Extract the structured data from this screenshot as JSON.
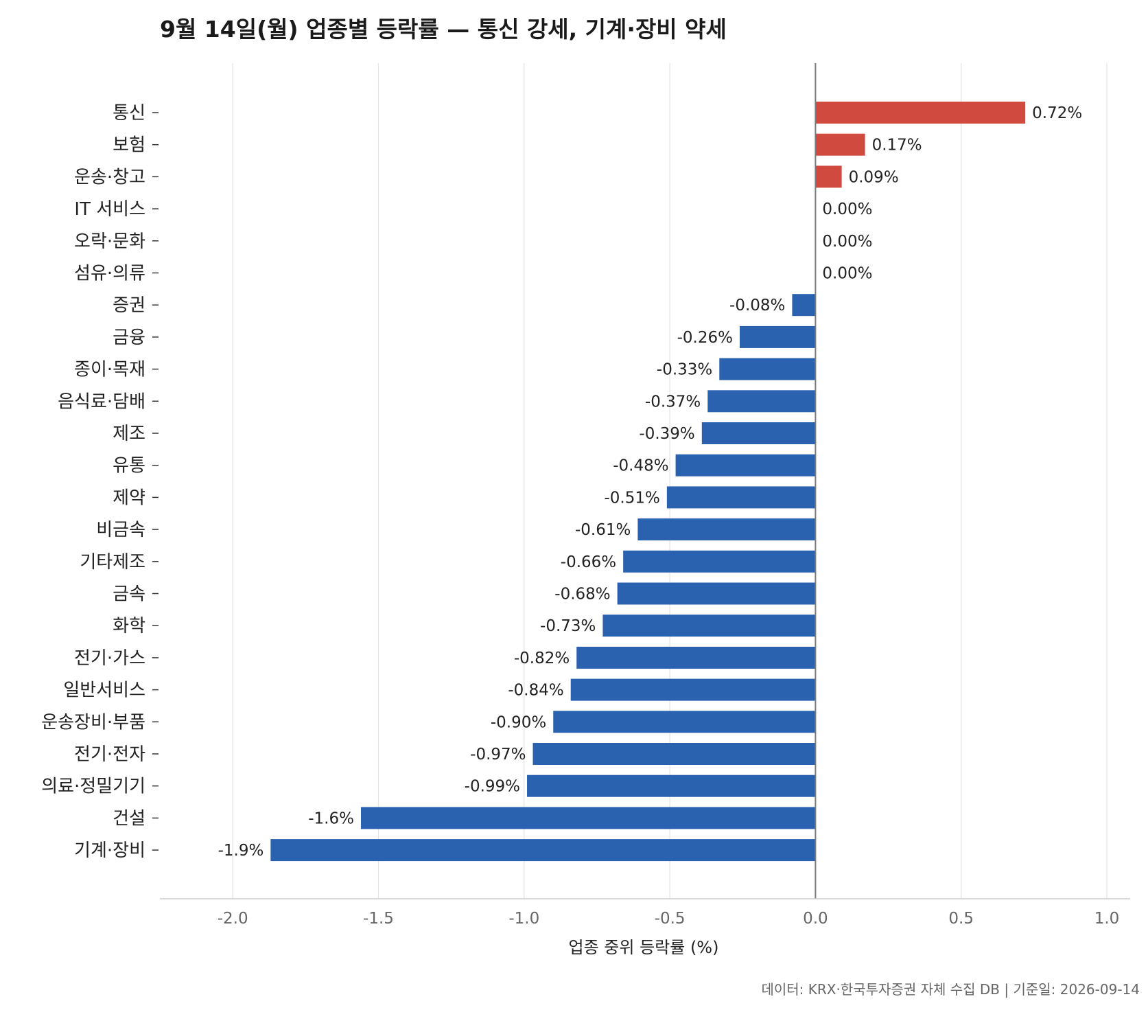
{
  "chart_data": {
    "type": "bar",
    "orientation": "horizontal",
    "title": "9월 14일(월) 업종별 등락률 — 통신 강세, 기계·장비 약세",
    "xlabel": "업종 중위 등락률 (%)",
    "ylabel": "",
    "xlim": [
      -2.25,
      1.08
    ],
    "xticks": [
      -2.0,
      -1.5,
      -1.0,
      -0.5,
      0.0,
      0.5,
      1.0
    ],
    "xtick_labels": [
      "-2.0",
      "-1.5",
      "-1.0",
      "-0.5",
      "0.0",
      "0.5",
      "1.0"
    ],
    "grid": "vertical",
    "colors": {
      "positive": "#d14a3f",
      "negative": "#2a62b0",
      "zero_line": "#7a7a7a",
      "grid": "#e3e3e3"
    },
    "categories": [
      "통신",
      "보험",
      "운송·창고",
      "IT 서비스",
      "오락·문화",
      "섬유·의류",
      "증권",
      "금융",
      "종이·목재",
      "음식료·담배",
      "제조",
      "유통",
      "제약",
      "비금속",
      "기타제조",
      "금속",
      "화학",
      "전기·가스",
      "일반서비스",
      "운송장비·부품",
      "전기·전자",
      "의료·정밀기기",
      "건설",
      "기계·장비"
    ],
    "values": [
      0.72,
      0.17,
      0.09,
      0.0,
      0.0,
      0.0,
      -0.08,
      -0.26,
      -0.33,
      -0.37,
      -0.39,
      -0.48,
      -0.51,
      -0.61,
      -0.66,
      -0.68,
      -0.73,
      -0.82,
      -0.84,
      -0.9,
      -0.97,
      -0.99,
      -1.56,
      -1.87
    ],
    "value_labels": [
      "0.72%",
      "0.17%",
      "0.09%",
      "0.00%",
      "0.00%",
      "0.00%",
      "-0.08%",
      "-0.26%",
      "-0.33%",
      "-0.37%",
      "-0.39%",
      "-0.48%",
      "-0.51%",
      "-0.61%",
      "-0.66%",
      "-0.68%",
      "-0.73%",
      "-0.82%",
      "-0.84%",
      "-0.90%",
      "-0.97%",
      "-0.99%",
      "-1.6%",
      "-1.9%"
    ]
  },
  "footer": {
    "note": "데이터: KRX·한국투자증권 자체 수집 DB  |  기준일: 2026-09-14"
  }
}
